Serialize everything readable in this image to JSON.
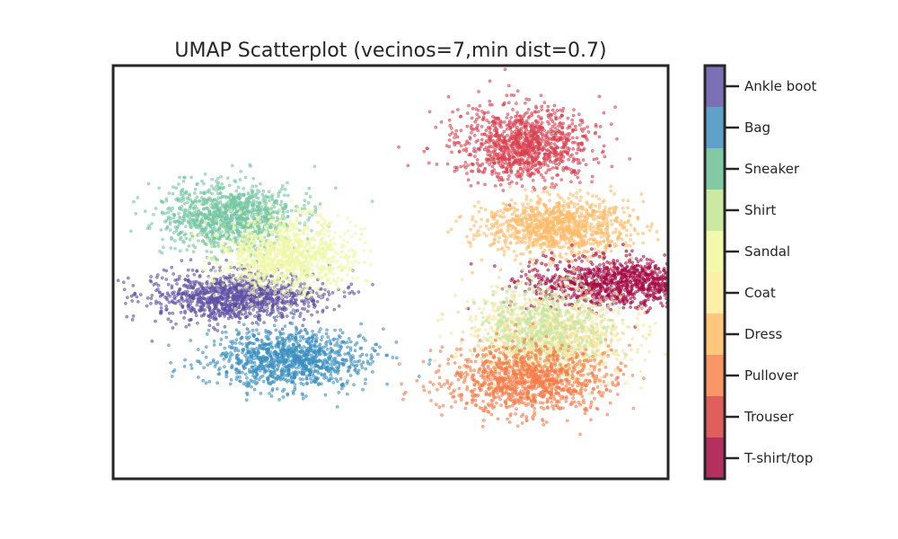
{
  "chart_data": {
    "type": "scatter",
    "title": "UMAP Scatterplot (vecinos=7,min dist=0.7)",
    "xlabel": "",
    "ylabel": "",
    "grid": false,
    "axis_ticks": false,
    "colorbar": {
      "placement": "right",
      "entries": [
        "Ankle boot",
        "Bag",
        "Sneaker",
        "Shirt",
        "Sandal",
        "Coat",
        "Dress",
        "Pullover",
        "Trouser",
        "T-shirt/top"
      ],
      "colors": [
        "#7b6fb5",
        "#5fa1c9",
        "#82c9a5",
        "#cbe9a0",
        "#f2f9ad",
        "#fdeeaa",
        "#fec77b",
        "#f99666",
        "#e05e5c",
        "#b3305f"
      ]
    },
    "clusters": [
      {
        "label": "Trouser",
        "color": "#d8404f",
        "center": [
          0.48,
          -0.62
        ],
        "spread": [
          0.12,
          0.09
        ],
        "density": "high"
      },
      {
        "label": "Ankle boot",
        "color": "#5e4fa2",
        "center": [
          -0.56,
          0.12
        ],
        "spread": [
          0.15,
          0.06
        ],
        "density": "high"
      },
      {
        "label": "Sneaker",
        "color": "#74c6a3",
        "center": [
          -0.58,
          -0.27
        ],
        "spread": [
          0.12,
          0.08
        ],
        "density": "high"
      },
      {
        "label": "Sandal",
        "color": "#eef7a6",
        "center": [
          -0.38,
          -0.08
        ],
        "spread": [
          0.12,
          0.09
        ],
        "density": "high"
      },
      {
        "label": "Bag",
        "color": "#3a8fc0",
        "center": [
          -0.36,
          0.42
        ],
        "spread": [
          0.14,
          0.07
        ],
        "density": "high"
      },
      {
        "label": "Dress",
        "color": "#fdbb6a",
        "center": [
          0.6,
          -0.22
        ],
        "spread": [
          0.13,
          0.07
        ],
        "density": "high"
      },
      {
        "label": "T-shirt/top",
        "color": "#a60d45",
        "center": [
          0.82,
          0.05
        ],
        "spread": [
          0.16,
          0.06
        ],
        "density": "high"
      },
      {
        "label": "Coat",
        "color": "#fde49a",
        "center": [
          0.57,
          0.33
        ],
        "spread": [
          0.14,
          0.11
        ],
        "density": "high"
      },
      {
        "label": "Shirt",
        "color": "#c6e6a0",
        "center": [
          0.55,
          0.26
        ],
        "spread": [
          0.12,
          0.1
        ],
        "density": "medium"
      },
      {
        "label": "Pullover",
        "color": "#f57a47",
        "center": [
          0.5,
          0.52
        ],
        "spread": [
          0.15,
          0.08
        ],
        "density": "high"
      }
    ]
  }
}
